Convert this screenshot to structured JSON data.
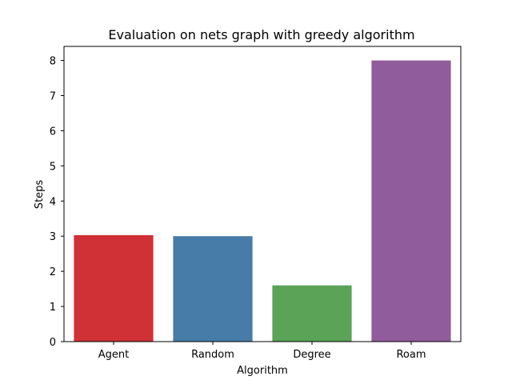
{
  "chart_data": {
    "type": "bar",
    "title": "Evaluation on nets graph with greedy algorithm",
    "xlabel": "Algorithm",
    "ylabel": "Steps",
    "categories": [
      "Agent",
      "Random",
      "Degree",
      "Roam"
    ],
    "values": [
      3.03,
      3.0,
      1.6,
      8.0
    ],
    "colors": [
      "#d03137",
      "#477ba8",
      "#5ba357",
      "#915c9b"
    ],
    "ylim": [
      0,
      8.4
    ],
    "yticks": [
      "0",
      "1",
      "2",
      "3",
      "4",
      "5",
      "6",
      "7",
      "8"
    ],
    "grid": false,
    "legend": "none"
  }
}
